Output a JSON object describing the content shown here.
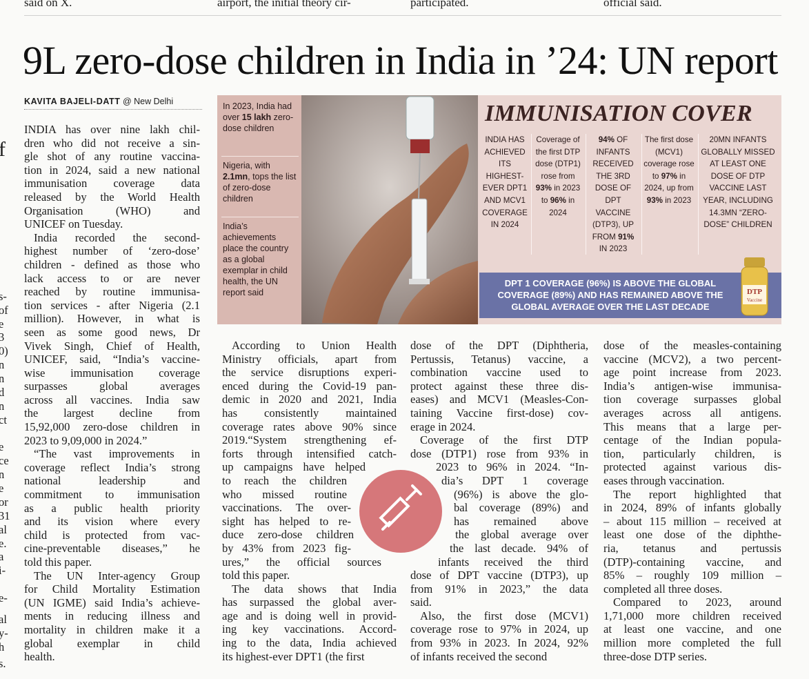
{
  "top_fragments": [
    "said on X.",
    "airport, the initial theory cir-",
    "participated.",
    "official said."
  ],
  "left_fragments": [
    "f",
    "s-",
    "of",
    "e",
    "3",
    "0)",
    "n",
    "n",
    "d",
    "n",
    "ct",
    "e",
    "ce",
    "n",
    "e",
    "or",
    "31",
    "al",
    "e.",
    "a",
    "i-",
    "e-",
    "al",
    "y-",
    "h",
    "s."
  ],
  "headline": "9L zero-dose children in India in ’24: UN report",
  "byline": {
    "author": "KAVITA BAJELI-DATT",
    "location": "@ New Delhi"
  },
  "infographic": {
    "side_notes": [
      [
        "In 2023, India had over ",
        {
          "text": "15 lakh",
          "bold": true
        },
        " zero-dose children"
      ],
      [
        "Nigeria, with ",
        {
          "text": "2.1mn",
          "bold": true
        },
        ", tops the list of zero-dose children"
      ],
      [
        "India’s achievements place the country as a global exemplar in child health, the UN report said"
      ]
    ],
    "title": "IMMUNISATION COVER",
    "facts": [
      [
        "INDIA HAS ACHIEVED ITS HIGHEST-EVER DPT1 AND MCV1 COVERAGE IN 2024"
      ],
      [
        "Coverage of the first DTP dose (DTP1) rose from ",
        {
          "text": "93%",
          "bold": true
        },
        " in 2023 to ",
        {
          "text": "96%",
          "bold": true
        },
        " in 2024"
      ],
      [
        {
          "text": "94%",
          "bold": true
        },
        " OF INFANTS RECEIVED THE 3RD DOSE OF DPT VACCINE (DTP3), UP FROM ",
        {
          "text": "91%",
          "bold": true
        },
        " IN 2023"
      ],
      [
        "The first dose (MCV1) coverage rose to ",
        {
          "text": "97%",
          "bold": true
        },
        " in 2024, up from ",
        {
          "text": "93%",
          "bold": true
        },
        " in 2023"
      ],
      [
        "20MN INFANTS GLOBALLY MISSED AT LEAST ONE DOSE OF DTP VACCINE LAST YEAR, INCLUDING 14.3MN “ZERO-DOSE” CHILDREN"
      ]
    ],
    "banner": "DPT 1 COVERAGE (96%) IS ABOVE THE GLOBAL COVERAGE (89%) AND HAS REMAINED ABOVE THE GLOBAL AVERAGE OVER THE LAST DECADE",
    "vial_label": [
      "DTP",
      "Vaccine"
    ]
  },
  "columns": [
    {
      "paragraphs": [
        [
          "INDIA has over nine lakh chil-",
          "dren who did not receive a sin-",
          "gle shot of any routine vaccina-",
          "tion in 2024, said a new national",
          "immunisation coverage data",
          "released by the World Health",
          "Organisation (WHO) and",
          "UNICEF on Tuesday."
        ],
        [
          "India recorded the second-",
          "highest number of ‘zero-dose’",
          "children - defined as those who",
          "lack access to or are never",
          "reached by routine immunisa-",
          "tion services - after Nigeria (2.1",
          "million). However, in what is",
          "seen as some good news, Dr",
          "Vivek Singh, Chief of Health,",
          "UNICEF, said, “India’s vaccine-",
          "wise immunisation coverage",
          "surpasses global averages",
          "across all vaccines. India saw",
          "the largest decline from",
          "15,92,000 zero-dose children in",
          "2023 to 9,09,000 in 2024.”"
        ],
        [
          "“The vast improvements in",
          "coverage reflect India’s strong",
          "national leadership and",
          "commitment to immunisation",
          "as a public health priority",
          "and its vision where every",
          "child is protected from vac-",
          "cine-preventable diseases,” he",
          "told this paper."
        ],
        [
          "The UN Inter-agency Group",
          "for Child Mortality Estimation",
          "(UN IGME) said India’s achieve-",
          "ments in reducing illness and",
          "mortality in children make it a",
          "global exemplar in child",
          "health."
        ]
      ]
    },
    {
      "paragraphs": [
        [
          "According to Union Health",
          "Ministry officials, apart from",
          "the service disruptions experi-",
          "enced during the Covid-19 pan-",
          "demic in 2020 and 2021, India",
          "has consistently maintained",
          "coverage rates above 90% since",
          "2019.“System strengthening ef-",
          "forts through intensified catch-",
          "up campaigns have helped",
          "to reach the children",
          "who missed routine",
          "vaccinations. The over-",
          "sight has helped to re-",
          "duce zero-dose children",
          "by 43% from 2023 fig-",
          "ures,” the official sources",
          "told this paper."
        ],
        [
          "The data shows that India",
          "has surpassed the global aver-",
          "age and is doing well in provid-",
          "ing key vaccinations. Accord-",
          "ing to the data, India achieved",
          "its highest-ever DPT1 (the first"
        ]
      ]
    },
    {
      "paragraphs": [
        [
          "dose of the DPT (Diphtheria,",
          "Pertussis, Tetanus) vaccine, a",
          "combination vaccine used to",
          "protect against these three dis-",
          "eases) and MCV1 (Measles-Con-",
          "taining Vaccine first-dose) cov-",
          "erage in 2024."
        ],
        [
          "Coverage of the first DTP",
          "dose (DTP1) rose from 93% in",
          "2023 to 96% in 2024. “In-",
          "dia’s DPT 1 coverage",
          "(96%) is above the glo-",
          "bal coverage (89%) and",
          "has remained above",
          "the global average over",
          "the last decade. 94% of",
          "infants received the third",
          "dose of DPT vaccine (DTP3), up",
          "from 91% in 2023,” the data",
          "said."
        ],
        [
          "Also, the first dose (MCV1)",
          "coverage rose to 97% in 2024, up",
          "from 93% in 2023. In 2024, 92%",
          "of infants received the second"
        ]
      ]
    },
    {
      "paragraphs": [
        [
          "dose of the measles-containing",
          "vaccine (MCV2), a two percent-",
          "age point increase from 2023.",
          "India’s antigen-wise immunisa-",
          "tion coverage surpasses global",
          "averages across all antigens.",
          "This means that a large per-",
          "centage of the Indian popula-",
          "tion, particularly children, is",
          "protected against various dis-",
          "eases through vaccination."
        ],
        [
          "The report highlighted that",
          "in 2024, 89% of infants globally",
          "– about 115 million – received at",
          "least one dose of the diphthe-",
          "ria, tetanus and pertussis",
          "(DTP)-containing vaccine, and",
          "85% – roughly 109 million –",
          "completed all three doses."
        ],
        [
          "Compared to 2023, around",
          "1,71,000 more children received",
          "at least one vaccine, and one",
          "million more completed the full",
          "three-dose DTP series."
        ]
      ]
    }
  ]
}
